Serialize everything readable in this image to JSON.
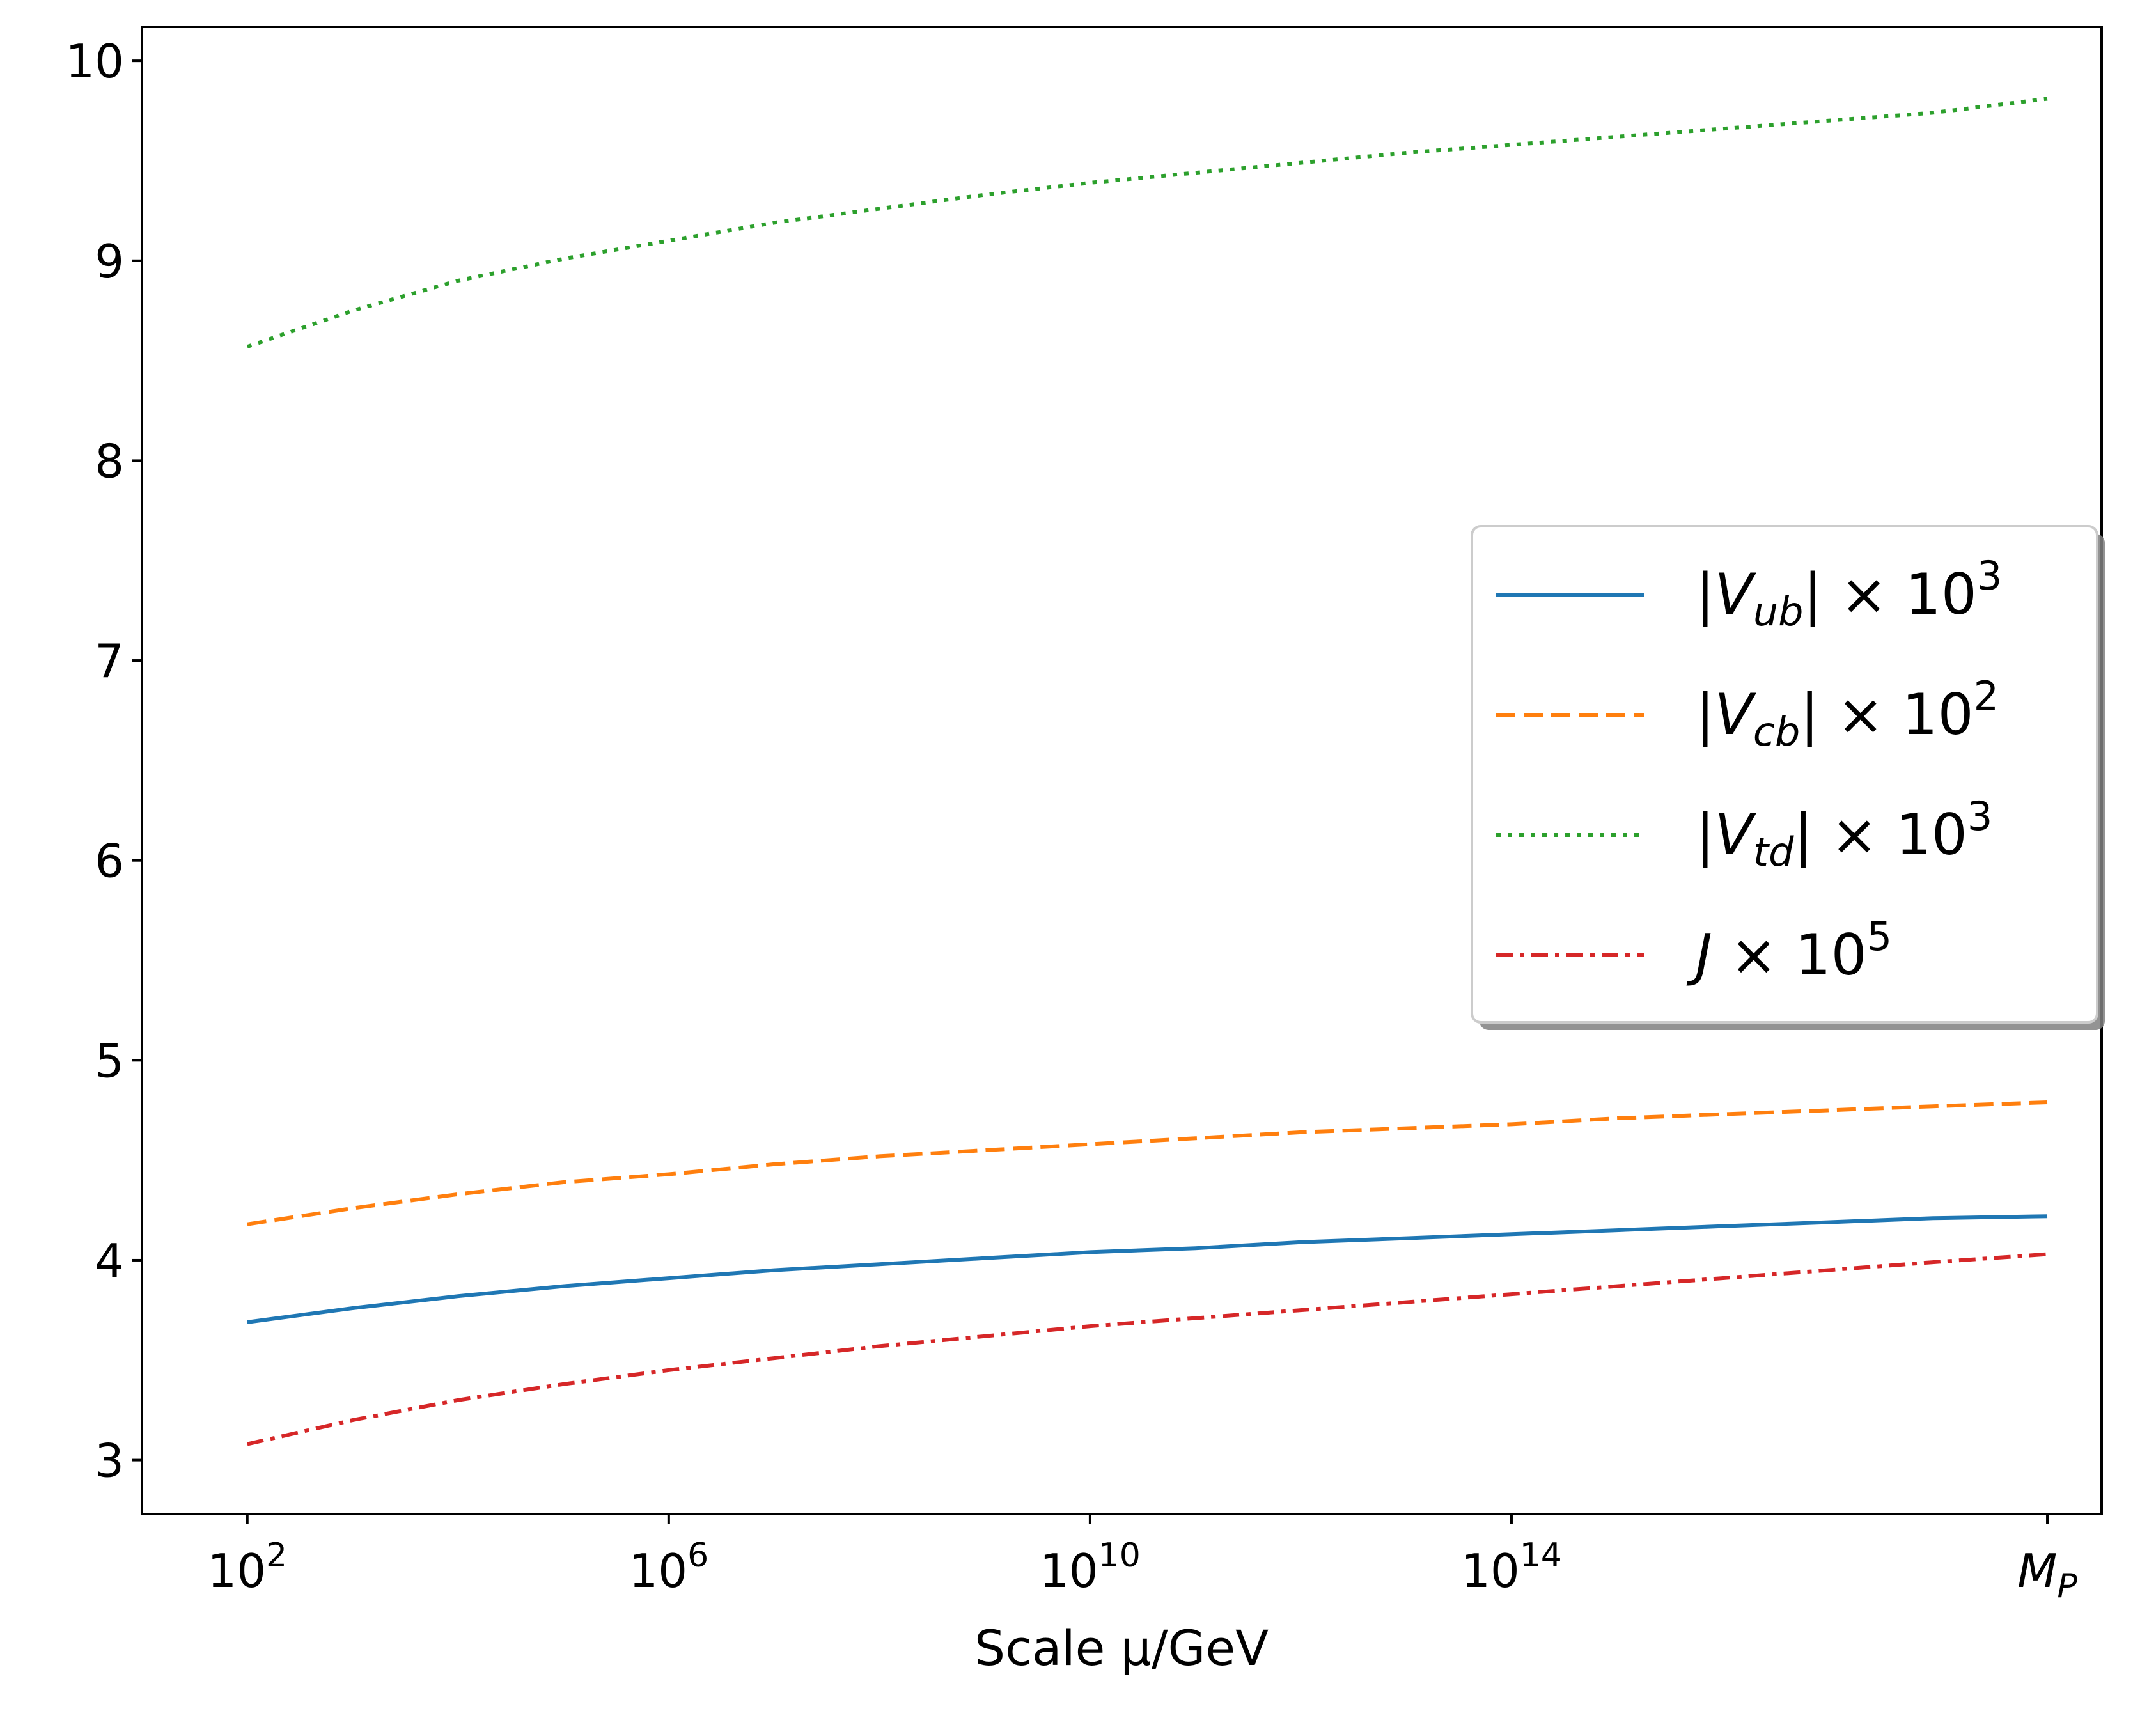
{
  "chart_data": {
    "type": "line",
    "title": "",
    "xlabel": "Scale  μ/GeV",
    "ylabel": "",
    "xscale": "log",
    "xlim": [
      10.0,
      4e+19
    ],
    "ylim": [
      2.73,
      10.17
    ],
    "grid": false,
    "legend_position": "center-right",
    "x_ticks": [
      {
        "value": 100.0,
        "base": "10",
        "exp": "2"
      },
      {
        "value": 1000000.0,
        "base": "10",
        "exp": "6"
      },
      {
        "value": 10000000000.0,
        "base": "10",
        "exp": "10"
      },
      {
        "value": 100000000000000.0,
        "base": "10",
        "exp": "14"
      },
      {
        "value": 1.22e+19,
        "base": "M",
        "exp": "P"
      }
    ],
    "y_ticks": [
      3,
      4,
      5,
      6,
      7,
      8,
      9,
      10
    ],
    "x": [
      100.0,
      1000.0,
      10000.0,
      100000.0,
      1000000.0,
      10000000.0,
      100000000.0,
      1000000000.0,
      10000000000.0,
      100000000000.0,
      1000000000000.0,
      10000000000000.0,
      100000000000000.0,
      1000000000000000.0,
      1e+16,
      1e+17,
      1e+18,
      1.22e+19
    ],
    "series": [
      {
        "name": "|V_ub| × 10^3",
        "legend": {
          "pre": "|",
          "var": "V",
          "sub": "ub",
          "post": "| × 10",
          "sup": "3"
        },
        "color": "#1f77b4",
        "dash": "solid",
        "values": [
          3.69,
          3.76,
          3.82,
          3.87,
          3.91,
          3.95,
          3.98,
          4.01,
          4.04,
          4.06,
          4.09,
          4.11,
          4.13,
          4.15,
          4.17,
          4.19,
          4.21,
          4.22
        ]
      },
      {
        "name": "|V_cb| × 10^2",
        "legend": {
          "pre": "|",
          "var": "V",
          "sub": "cb",
          "post": "| × 10",
          "sup": "2"
        },
        "color": "#ff7f0e",
        "dash": "dashed",
        "values": [
          4.18,
          4.26,
          4.33,
          4.39,
          4.43,
          4.48,
          4.52,
          4.55,
          4.58,
          4.61,
          4.64,
          4.66,
          4.68,
          4.71,
          4.73,
          4.75,
          4.77,
          4.79
        ]
      },
      {
        "name": "|V_td| × 10^3",
        "legend": {
          "pre": "|",
          "var": "V",
          "sub": "td",
          "post": "| × 10",
          "sup": "3"
        },
        "color": "#2ca02c",
        "dash": "dotted",
        "values": [
          8.57,
          8.75,
          8.9,
          9.01,
          9.1,
          9.19,
          9.26,
          9.33,
          9.39,
          9.44,
          9.49,
          9.54,
          9.58,
          9.62,
          9.66,
          9.7,
          9.74,
          9.81
        ]
      },
      {
        "name": "J × 10^5",
        "legend": {
          "pre": "",
          "var": "J",
          "sub": "",
          "post": " × 10",
          "sup": "5"
        },
        "color": "#d62728",
        "dash": "dashdot",
        "values": [
          3.08,
          3.2,
          3.3,
          3.38,
          3.45,
          3.51,
          3.57,
          3.62,
          3.67,
          3.71,
          3.75,
          3.79,
          3.83,
          3.87,
          3.91,
          3.95,
          3.99,
          4.03
        ]
      }
    ]
  }
}
